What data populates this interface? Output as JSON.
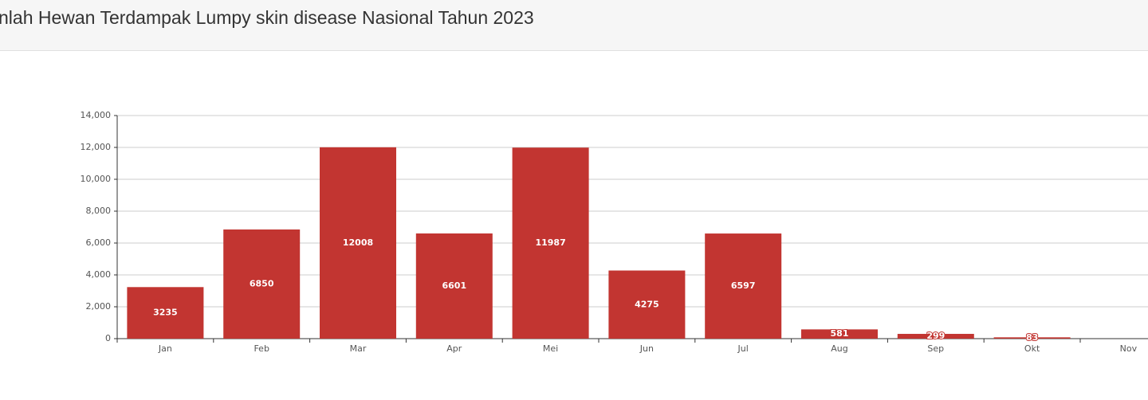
{
  "header": {
    "title": "nlah Hewan Terdampak Lumpy skin disease Nasional Tahun 2023"
  },
  "chart_data": {
    "type": "bar",
    "categories": [
      "Jan",
      "Feb",
      "Mar",
      "Apr",
      "Mei",
      "Jun",
      "Jul",
      "Aug",
      "Sep",
      "Okt",
      "Nov"
    ],
    "values": [
      3235,
      6850,
      12008,
      6601,
      11987,
      4275,
      6597,
      581,
      299,
      83,
      null
    ],
    "color": "#c23531",
    "ylim": [
      0,
      14000
    ],
    "yticks": [
      0,
      {
        "value": 2000,
        "label": "2,000"
      },
      {
        "value": 4000,
        "label": "4,000"
      },
      {
        "value": 6000,
        "label": "6,000"
      },
      {
        "value": 8000,
        "label": "8,000"
      },
      {
        "value": 10000,
        "label": "10,000"
      },
      {
        "value": 12000,
        "label": "12,000"
      },
      {
        "value": 14000,
        "label": "14,000"
      }
    ],
    "grid": true
  }
}
